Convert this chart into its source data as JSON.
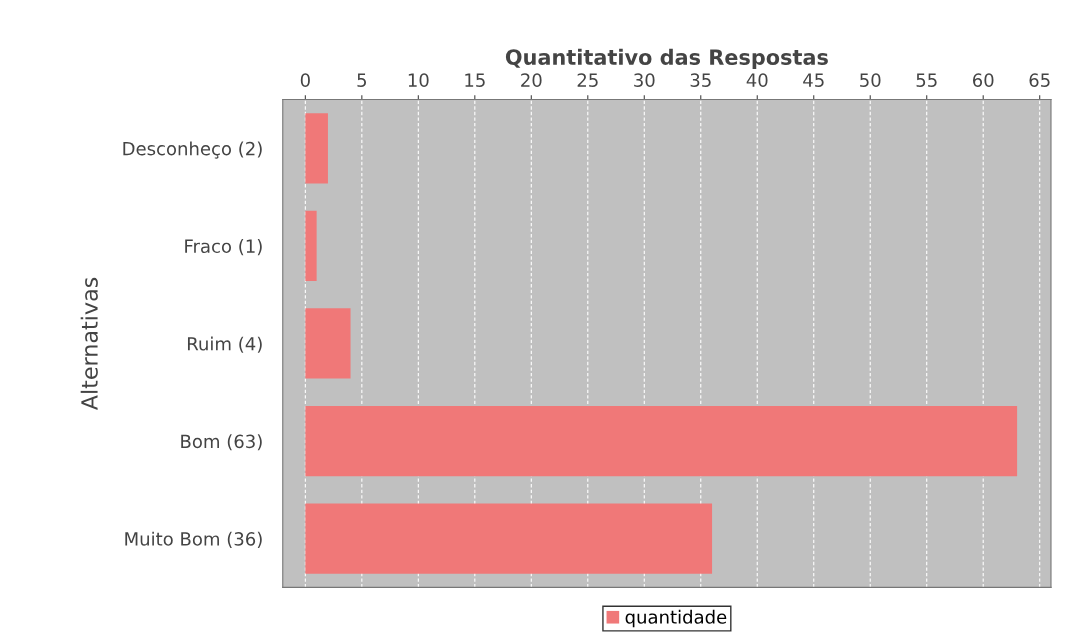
{
  "chart_data": {
    "type": "bar",
    "orientation": "horizontal",
    "xlabel": "Quantitativo das Respostas",
    "ylabel": "Alternativas",
    "categories": [
      "Desconheço (2)",
      "Fraco (1)",
      "Ruim (4)",
      "Bom (63)",
      "Muito Bom (36)"
    ],
    "series": [
      {
        "name": "quantidade",
        "color": "#f07878",
        "values": [
          2,
          1,
          4,
          63,
          36
        ]
      }
    ],
    "xlim": [
      -2,
      66
    ],
    "xticks": [
      0,
      5,
      10,
      15,
      20,
      25,
      30,
      35,
      40,
      45,
      50,
      55,
      60,
      65
    ],
    "grid": "x",
    "legend": "bottom"
  }
}
